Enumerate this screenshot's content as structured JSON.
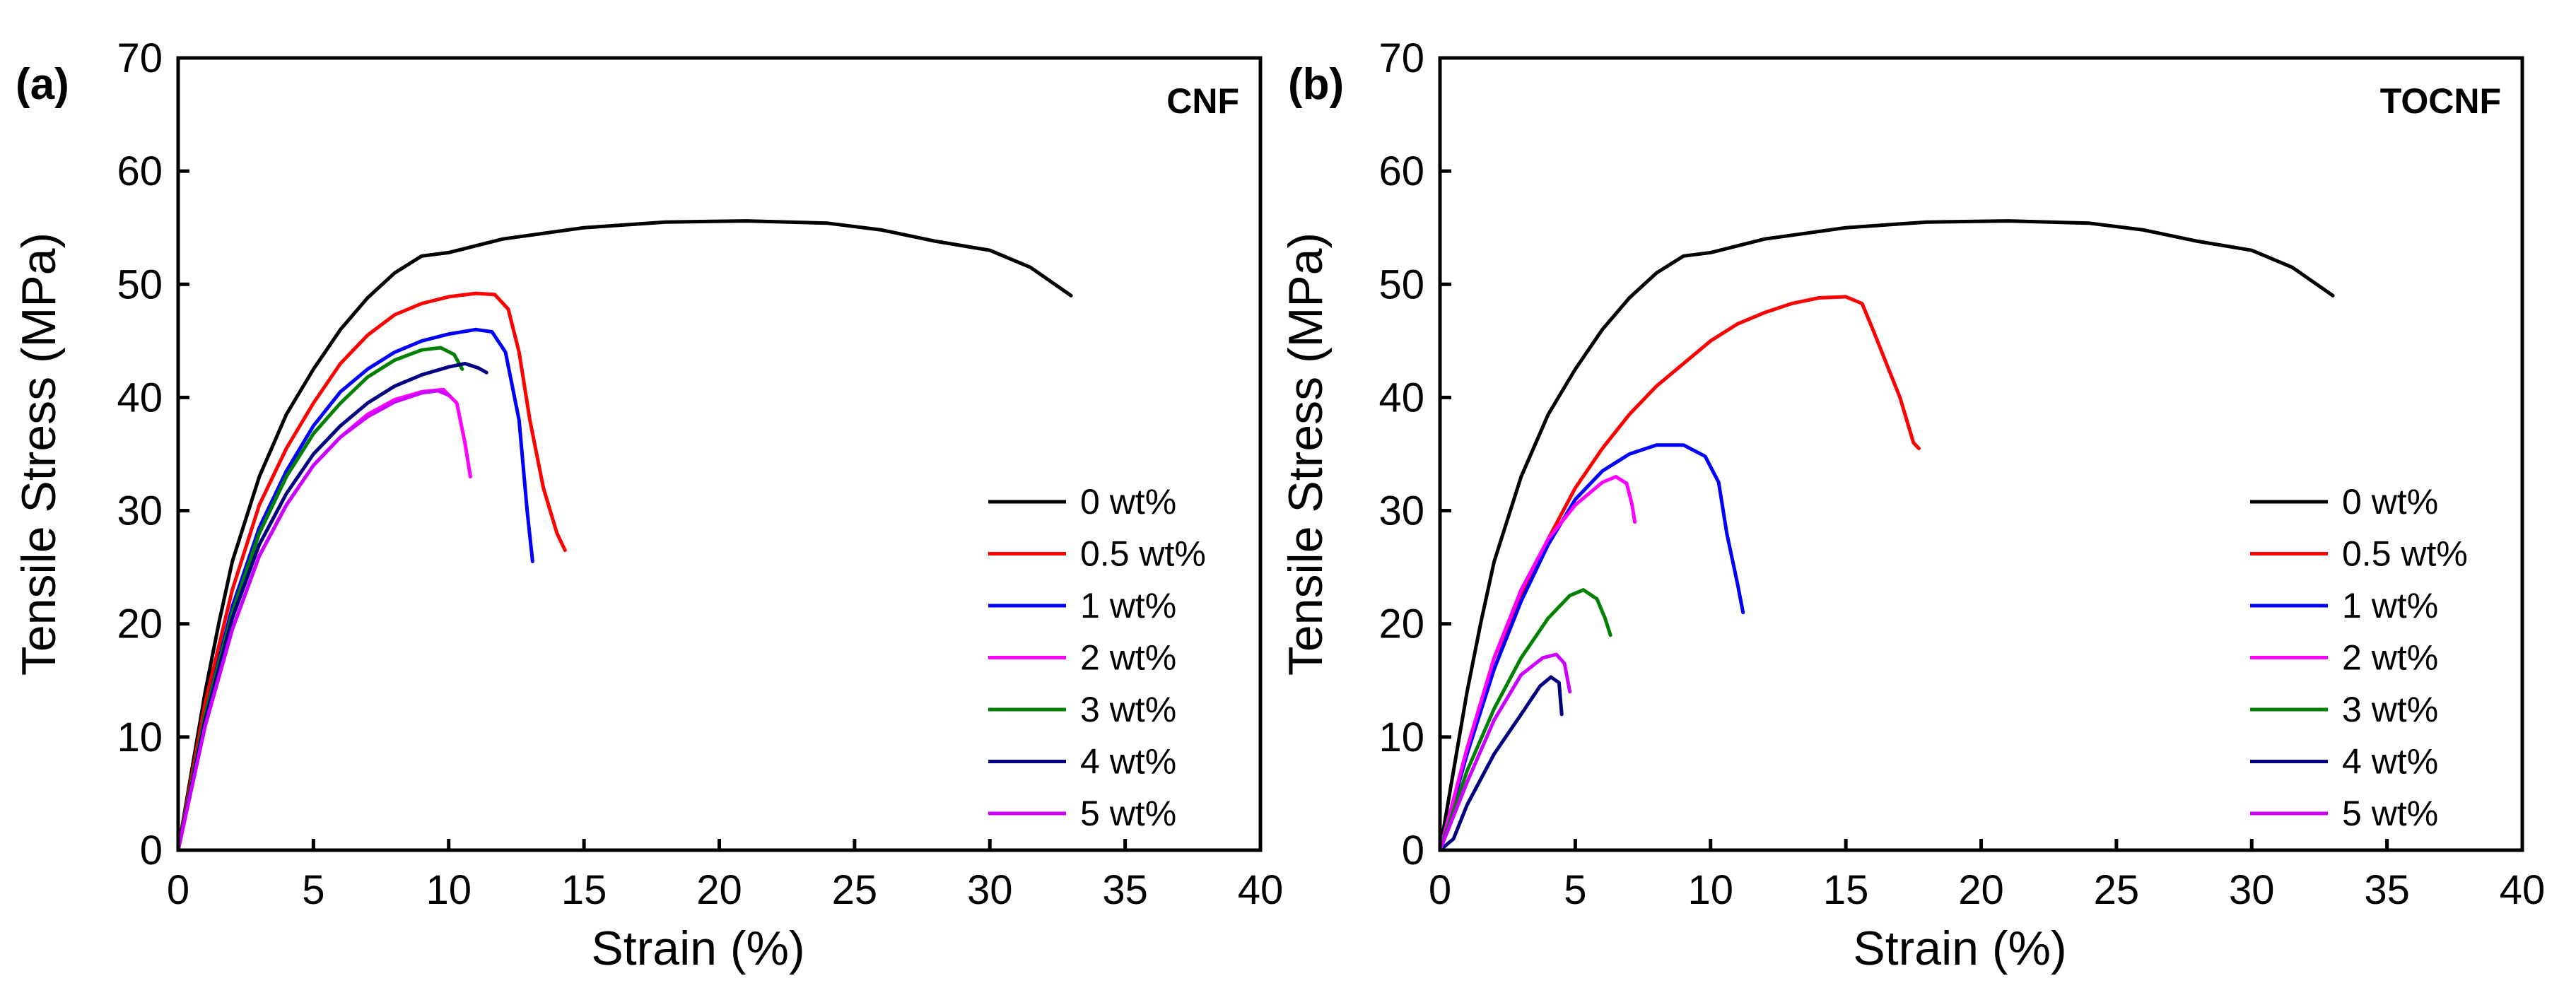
{
  "chart_data": [
    {
      "type": "line",
      "panel_label": "(a)",
      "material": "CNF",
      "xlabel": "Strain (%)",
      "ylabel": "Tensile Stress (MPa)",
      "xlim": [
        0,
        40
      ],
      "ylim": [
        0,
        70
      ],
      "xticks": [
        "0",
        "5",
        "10",
        "15",
        "20",
        "25",
        "30",
        "35",
        "40"
      ],
      "yticks": [
        "0",
        "10",
        "20",
        "30",
        "40",
        "50",
        "60",
        "70"
      ],
      "legend_position": "right-middle",
      "series": [
        {
          "name": "0 wt%",
          "color": "#000000",
          "points": [
            [
              0,
              0
            ],
            [
              0.5,
              7
            ],
            [
              1,
              14
            ],
            [
              1.5,
              20
            ],
            [
              2,
              25.5
            ],
            [
              3,
              33
            ],
            [
              4,
              38.5
            ],
            [
              5,
              42.5
            ],
            [
              6,
              46
            ],
            [
              7,
              48.8
            ],
            [
              8,
              51
            ],
            [
              9,
              52.5
            ],
            [
              10,
              52.8
            ],
            [
              12,
              54
            ],
            [
              15,
              55
            ],
            [
              18,
              55.5
            ],
            [
              21,
              55.6
            ],
            [
              24,
              55.4
            ],
            [
              26,
              54.8
            ],
            [
              28,
              53.8
            ],
            [
              30,
              53
            ],
            [
              31.5,
              51.5
            ],
            [
              33,
              49
            ]
          ]
        },
        {
          "name": "0.5 wt%",
          "color": "#ff0000",
          "points": [
            [
              0,
              0
            ],
            [
              1,
              13
            ],
            [
              2,
              23
            ],
            [
              3,
              30.5
            ],
            [
              4,
              35.5
            ],
            [
              5,
              39.5
            ],
            [
              6,
              43
            ],
            [
              7,
              45.5
            ],
            [
              8,
              47.3
            ],
            [
              9,
              48.3
            ],
            [
              10,
              48.9
            ],
            [
              11,
              49.2
            ],
            [
              11.7,
              49.1
            ],
            [
              12.2,
              47.8
            ],
            [
              12.6,
              44
            ],
            [
              13,
              38
            ],
            [
              13.5,
              32
            ],
            [
              14,
              28
            ],
            [
              14.3,
              26.5
            ]
          ]
        },
        {
          "name": "1 wt%",
          "color": "#0000ff",
          "points": [
            [
              0,
              0
            ],
            [
              1,
              12
            ],
            [
              2,
              21.5
            ],
            [
              3,
              28.5
            ],
            [
              4,
              33.5
            ],
            [
              5,
              37.5
            ],
            [
              6,
              40.5
            ],
            [
              7,
              42.5
            ],
            [
              8,
              44
            ],
            [
              9,
              45
            ],
            [
              10,
              45.6
            ],
            [
              11,
              46
            ],
            [
              11.6,
              45.8
            ],
            [
              12.1,
              44
            ],
            [
              12.6,
              38
            ],
            [
              12.9,
              30
            ],
            [
              13.1,
              25.5
            ]
          ]
        },
        {
          "name": "2 wt%",
          "color": "#ff00ff",
          "points": [
            [
              0,
              0
            ],
            [
              1,
              11
            ],
            [
              2,
              19.5
            ],
            [
              3,
              26
            ],
            [
              4,
              30.5
            ],
            [
              5,
              34
            ],
            [
              6,
              36.5
            ],
            [
              7,
              38.5
            ],
            [
              8,
              39.8
            ],
            [
              9,
              40.5
            ],
            [
              9.8,
              40.7
            ],
            [
              10.3,
              39.5
            ],
            [
              10.6,
              36
            ],
            [
              10.8,
              33
            ]
          ]
        },
        {
          "name": "3 wt%",
          "color": "#008000",
          "points": [
            [
              0,
              0
            ],
            [
              1,
              12
            ],
            [
              2,
              21
            ],
            [
              3,
              28
            ],
            [
              4,
              33
            ],
            [
              5,
              36.8
            ],
            [
              6,
              39.5
            ],
            [
              7,
              41.8
            ],
            [
              8,
              43.3
            ],
            [
              9,
              44.2
            ],
            [
              9.7,
              44.4
            ],
            [
              10.2,
              43.8
            ],
            [
              10.5,
              42.5
            ]
          ]
        },
        {
          "name": "4 wt%",
          "color": "#000080",
          "points": [
            [
              0,
              0
            ],
            [
              1,
              11.5
            ],
            [
              2,
              20.5
            ],
            [
              3,
              27
            ],
            [
              4,
              31.5
            ],
            [
              5,
              35
            ],
            [
              6,
              37.5
            ],
            [
              7,
              39.5
            ],
            [
              8,
              41
            ],
            [
              9,
              42
            ],
            [
              10,
              42.7
            ],
            [
              10.6,
              43
            ],
            [
              11.1,
              42.6
            ],
            [
              11.4,
              42.2
            ]
          ]
        },
        {
          "name": "5 wt%",
          "color": "#cc00ff",
          "points": [
            [
              0,
              0
            ],
            [
              1,
              11
            ],
            [
              2,
              19.5
            ],
            [
              3,
              26
            ],
            [
              4,
              30.5
            ],
            [
              5,
              34
            ],
            [
              6,
              36.5
            ],
            [
              7,
              38.3
            ],
            [
              8,
              39.6
            ],
            [
              9,
              40.4
            ],
            [
              9.6,
              40.6
            ],
            [
              10,
              40.2
            ]
          ]
        }
      ]
    },
    {
      "type": "line",
      "panel_label": "(b)",
      "material": "TOCNF",
      "xlabel": "Strain (%)",
      "ylabel": "Tensile Stress (MPa)",
      "xlim": [
        0,
        40
      ],
      "ylim": [
        0,
        70
      ],
      "xticks": [
        "0",
        "5",
        "10",
        "15",
        "20",
        "25",
        "30",
        "35",
        "40"
      ],
      "yticks": [
        "0",
        "10",
        "20",
        "30",
        "40",
        "50",
        "60",
        "70"
      ],
      "legend_position": "right-middle",
      "series": [
        {
          "name": "0 wt%",
          "color": "#000000",
          "points": [
            [
              0,
              0
            ],
            [
              0.5,
              7
            ],
            [
              1,
              14
            ],
            [
              1.5,
              20
            ],
            [
              2,
              25.5
            ],
            [
              3,
              33
            ],
            [
              4,
              38.5
            ],
            [
              5,
              42.5
            ],
            [
              6,
              46
            ],
            [
              7,
              48.8
            ],
            [
              8,
              51
            ],
            [
              9,
              52.5
            ],
            [
              10,
              52.8
            ],
            [
              12,
              54
            ],
            [
              15,
              55
            ],
            [
              18,
              55.5
            ],
            [
              21,
              55.6
            ],
            [
              24,
              55.4
            ],
            [
              26,
              54.8
            ],
            [
              28,
              53.8
            ],
            [
              30,
              53
            ],
            [
              31.5,
              51.5
            ],
            [
              33,
              49
            ]
          ]
        },
        {
          "name": "0.5 wt%",
          "color": "#ff0000",
          "points": [
            [
              0,
              0
            ],
            [
              1,
              8.5
            ],
            [
              2,
              16
            ],
            [
              3,
              22.5
            ],
            [
              4,
              27.5
            ],
            [
              5,
              32
            ],
            [
              6,
              35.5
            ],
            [
              7,
              38.5
            ],
            [
              8,
              41
            ],
            [
              9,
              43
            ],
            [
              10,
              45
            ],
            [
              11,
              46.5
            ],
            [
              12,
              47.5
            ],
            [
              13,
              48.3
            ],
            [
              14,
              48.8
            ],
            [
              15,
              48.9
            ],
            [
              15.6,
              48.3
            ],
            [
              16,
              46
            ],
            [
              16.5,
              43
            ],
            [
              17,
              40
            ],
            [
              17.5,
              36
            ],
            [
              17.7,
              35.5
            ]
          ]
        },
        {
          "name": "1 wt%",
          "color": "#0000ff",
          "points": [
            [
              0,
              0
            ],
            [
              1,
              8.5
            ],
            [
              2,
              16
            ],
            [
              3,
              22
            ],
            [
              4,
              27
            ],
            [
              5,
              31
            ],
            [
              6,
              33.5
            ],
            [
              7,
              35
            ],
            [
              8,
              35.8
            ],
            [
              9,
              35.8
            ],
            [
              9.8,
              34.8
            ],
            [
              10.3,
              32.5
            ],
            [
              10.6,
              28
            ],
            [
              11,
              23.5
            ],
            [
              11.2,
              21
            ]
          ]
        },
        {
          "name": "2 wt%",
          "color": "#ff00ff",
          "points": [
            [
              0,
              0
            ],
            [
              1,
              9
            ],
            [
              2,
              17
            ],
            [
              3,
              23
            ],
            [
              4,
              27.5
            ],
            [
              5,
              30.5
            ],
            [
              6,
              32.5
            ],
            [
              6.5,
              33
            ],
            [
              6.9,
              32.4
            ],
            [
              7.1,
              30.5
            ],
            [
              7.2,
              29
            ]
          ]
        },
        {
          "name": "3 wt%",
          "color": "#008000",
          "points": [
            [
              0,
              0
            ],
            [
              1,
              7
            ],
            [
              2,
              12.5
            ],
            [
              3,
              17
            ],
            [
              4,
              20.5
            ],
            [
              4.8,
              22.5
            ],
            [
              5.3,
              23
            ],
            [
              5.8,
              22.2
            ],
            [
              6.1,
              20.5
            ],
            [
              6.3,
              19
            ]
          ]
        },
        {
          "name": "4 wt%",
          "color": "#000080",
          "points": [
            [
              0,
              0
            ],
            [
              0.5,
              1
            ],
            [
              1,
              4
            ],
            [
              2,
              8.5
            ],
            [
              3,
              12
            ],
            [
              3.7,
              14.5
            ],
            [
              4.1,
              15.3
            ],
            [
              4.4,
              14.8
            ],
            [
              4.5,
              12
            ]
          ]
        },
        {
          "name": "5 wt%",
          "color": "#cc00ff",
          "points": [
            [
              0,
              0
            ],
            [
              1,
              6
            ],
            [
              2,
              11.5
            ],
            [
              3,
              15.5
            ],
            [
              3.8,
              17
            ],
            [
              4.3,
              17.3
            ],
            [
              4.6,
              16.5
            ],
            [
              4.8,
              14
            ]
          ]
        }
      ]
    }
  ]
}
